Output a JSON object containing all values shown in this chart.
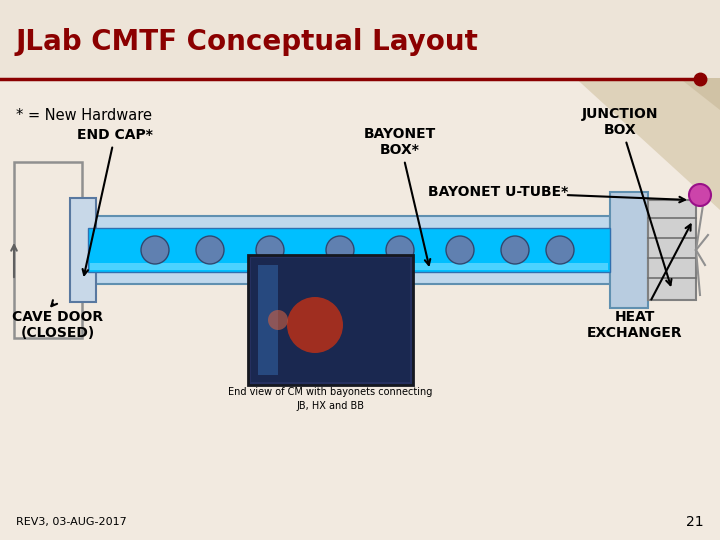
{
  "title": "JLab CMTF Conceptual Layout",
  "title_color": "#8B0000",
  "title_fontsize": 20,
  "bg_color": "#F2EAE0",
  "header_line_color": "#8B0000",
  "label_new_hw": "* = New Hardware",
  "label_end_cap": "END CAP*",
  "label_bayonet_box": "BAYONET\nBOX*",
  "label_junction_box": "JUNCTION\nBOX",
  "label_bayonet_utube": "BAYONET U-TUBE*",
  "label_cave_door": "CAVE DOOR\n(CLOSED)",
  "label_heat_exchanger": "HEAT\nEXCHANGER",
  "label_end_view": "End view of CM with bayonets connecting\nJB, HX and BB",
  "label_rev": "REV3, 03-AUG-2017",
  "label_page": "21",
  "arrow_color": "#000000",
  "tube_color_outer": "#B8D8F0",
  "tube_color_inner": "#00C0FF",
  "tube_border": "#4682B4",
  "junction_box_color": "#C8C8C8",
  "tri_color1": "#D8CAAE",
  "tri_color2": "#C8B898"
}
